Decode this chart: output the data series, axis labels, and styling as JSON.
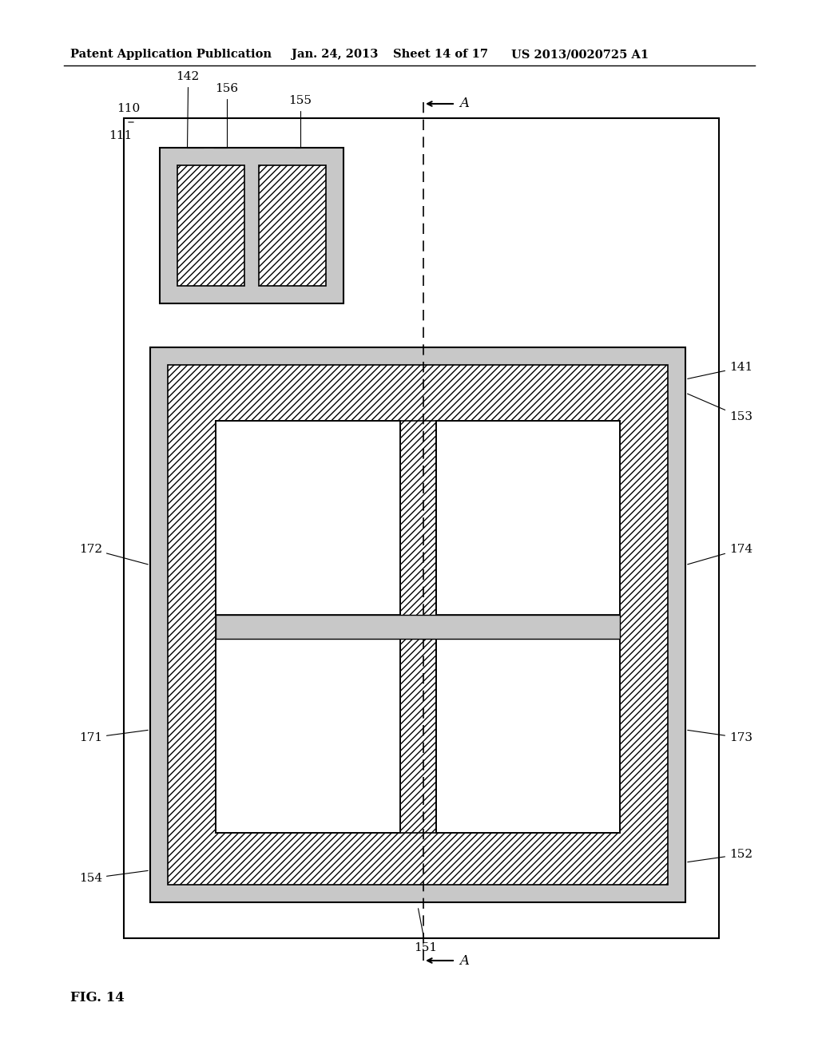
{
  "bg_color": "#ffffff",
  "header_text": "Patent Application Publication",
  "header_date": "Jan. 24, 2013",
  "header_sheet": "Sheet 14 of 17",
  "header_patent": "US 2013/0020725 A1",
  "fig_label": "FIG. 14",
  "light_gray": "#c8c8c8",
  "mid_gray": "#a0a0a0"
}
